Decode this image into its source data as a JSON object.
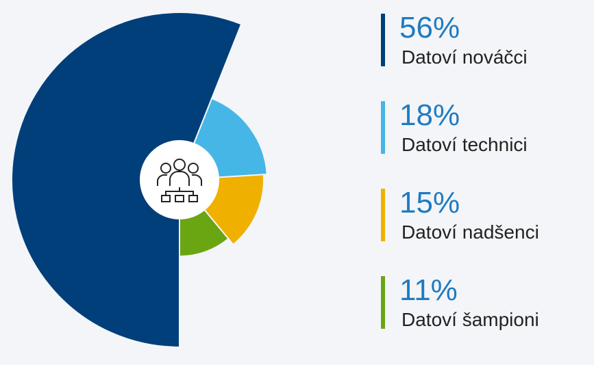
{
  "chart_data": {
    "type": "pie",
    "categories": [
      "Datoví nováčci",
      "Datoví technici",
      "Datoví nadšenci",
      "Datoví šampioni"
    ],
    "values": [
      56,
      18,
      15,
      11
    ],
    "value_labels": [
      "56%",
      "18%",
      "15%",
      "11%"
    ],
    "colors": [
      "#003f7a",
      "#45b6e6",
      "#f0b000",
      "#6aa512"
    ]
  }
}
